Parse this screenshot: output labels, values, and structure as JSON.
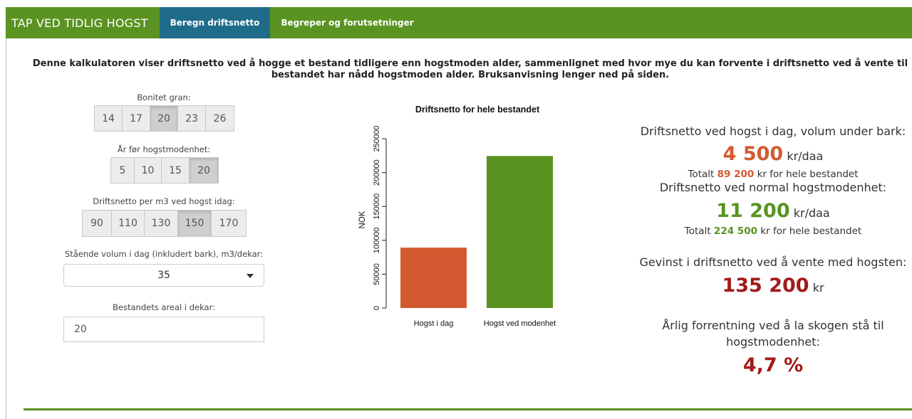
{
  "navbar": {
    "brand": "TAP VED TIDLIG HOGST",
    "tabs": [
      {
        "label": "Beregn driftsnetto",
        "active": true
      },
      {
        "label": "Begreper og forutsetninger",
        "active": false
      }
    ]
  },
  "intro": "Denne kalkulatoren viser driftsnetto ved å hogge et bestand tidligere enn hogstmoden alder, sammenlignet med hvor mye du kan forvente i driftsnetto ved å vente til bestandet har nådd hogstmoden alder. Bruksanvisning lenger ned på siden.",
  "controls": {
    "bonitet": {
      "label": "Bonitet gran:",
      "options": [
        "14",
        "17",
        "20",
        "23",
        "26"
      ],
      "selected": "20"
    },
    "aar": {
      "label": "År før hogstmodenhet:",
      "options": [
        "5",
        "10",
        "15",
        "20"
      ],
      "selected": "20"
    },
    "driftsnetto_m3": {
      "label": "Driftsnetto per m3 ved hogst idag:",
      "options": [
        "90",
        "110",
        "130",
        "150",
        "170"
      ],
      "selected": "150"
    },
    "volum": {
      "label": "Stående volum i dag (inkludert bark), m3/dekar:",
      "value": "35"
    },
    "areal": {
      "label": "Bestandets areal i dekar:",
      "value": "20"
    }
  },
  "chart_data": {
    "type": "bar",
    "title": "Driftsnetto for hele bestandet",
    "ylabel": "NOK",
    "xlabel": "",
    "categories": [
      "Hogst i dag",
      "Hogst ved modenhet"
    ],
    "values": [
      89200,
      224500
    ],
    "colors": [
      "#d35a30",
      "#5a9321"
    ],
    "ylim": [
      0,
      250000
    ],
    "yticks": [
      0,
      50000,
      100000,
      150000,
      200000,
      250000
    ],
    "grid": false
  },
  "results": {
    "today_label": "Driftsnetto ved hogst i dag, volum under bark:",
    "today_value": "4 500",
    "today_unit": "kr/daa",
    "today_total_prefix": "Totalt",
    "today_total": "89 200",
    "today_total_suffix": "kr for hele bestandet",
    "mature_label": "Driftsnetto ved normal hogstmodenhet:",
    "mature_value": "11 200",
    "mature_unit": "kr/daa",
    "mature_total_prefix": "Totalt",
    "mature_total": "224 500",
    "mature_total_suffix": "kr for hele bestandet",
    "gain_label": "Gevinst i driftsnetto ved å vente med hogsten:",
    "gain_value": "135 200",
    "gain_unit": "kr",
    "rate_label": "Årlig forrentning ved å la skogen stå til hogstmodenhet:",
    "rate_value": "4,7 %"
  }
}
